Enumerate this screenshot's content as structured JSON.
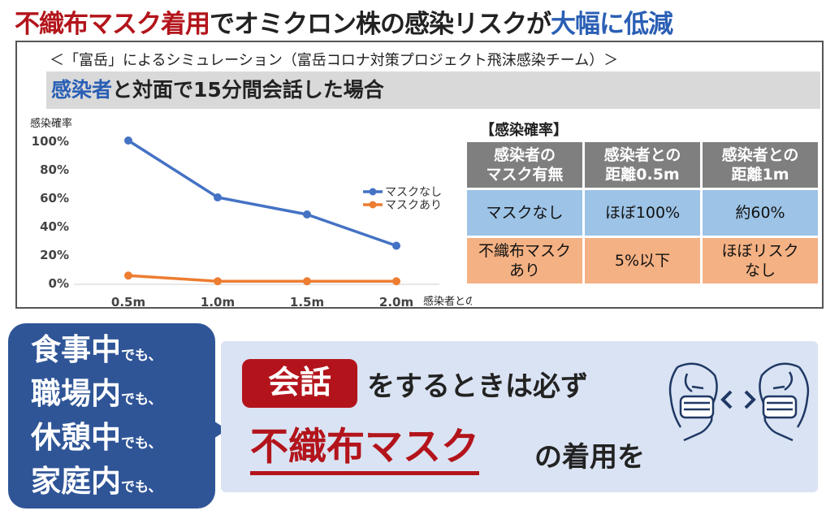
{
  "headline": {
    "part1": "不織布マスク着用",
    "part2": "でオミクロン株の感染リスクが",
    "part3": "大幅に低減"
  },
  "subtitle": "＜「富岳」によるシミュレーション（富岳コロナ対策プロジェクト飛沫感染チーム）＞",
  "scenario": {
    "part1": "感染者",
    "part2": "と対面で15分間会話した場合"
  },
  "chart_data": {
    "type": "line",
    "title": "",
    "ylabel": "感染確率",
    "xlabel": "感染者との距離",
    "categories": [
      "0.5m",
      "1.0m",
      "1.5m",
      "2.0m"
    ],
    "yticks": [
      "0%",
      "20%",
      "40%",
      "60%",
      "80%",
      "100%"
    ],
    "ylim": [
      0,
      100
    ],
    "legend_position": "right",
    "series": [
      {
        "name": "マスクなし",
        "values": [
          100,
          60,
          48,
          26
        ],
        "color": "#4472c4"
      },
      {
        "name": "マスクあり",
        "values": [
          5,
          1,
          1,
          1
        ],
        "color": "#ed7d31"
      }
    ]
  },
  "table": {
    "title": "【感染確率】",
    "headers": [
      "感染者の\nマスク有無",
      "感染者との\n距離0.5m",
      "感染者との\n距離1m"
    ],
    "rows": [
      [
        "マスクなし",
        "ほぼ100%",
        "約60%"
      ],
      [
        "不織布マスク\nあり",
        "5%以下",
        "ほぼリスク\nなし"
      ]
    ]
  },
  "bubble": {
    "lines": [
      {
        "big": "食事中",
        "small": "でも、"
      },
      {
        "big": "職場内",
        "small": "でも、"
      },
      {
        "big": "休憩中",
        "small": "でも、"
      },
      {
        "big": "家庭内",
        "small": "でも、"
      }
    ]
  },
  "message": {
    "highlight": "会話",
    "line1": "をするときは必ず",
    "emphasis": "不織布マスク",
    "line2": "の着用を"
  },
  "colors": {
    "accent_red": "#b3141b",
    "accent_blue": "#2a5fb5",
    "bubble_blue": "#2f5597",
    "message_bg": "#dae3f3"
  }
}
